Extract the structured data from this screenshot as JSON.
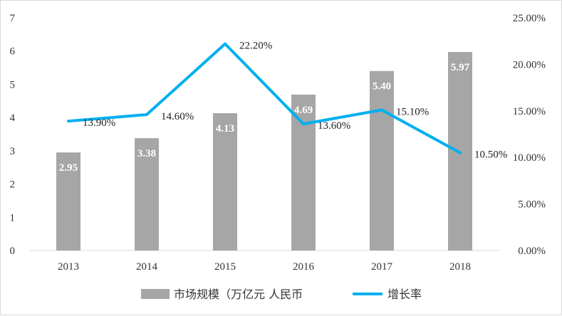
{
  "chart_data": {
    "type": "bar",
    "categories": [
      "2013",
      "2014",
      "2015",
      "2016",
      "2017",
      "2018"
    ],
    "series": [
      {
        "name": "市场规模（万亿元 人民币",
        "type": "bar",
        "axis": "left",
        "values": [
          2.95,
          3.38,
          4.13,
          4.69,
          5.4,
          5.97
        ],
        "labels": [
          "2.95",
          "3.38",
          "4.13",
          "4.69",
          "5.40",
          "5.97"
        ],
        "color": "#a6a6a6"
      },
      {
        "name": "增长率",
        "type": "line",
        "axis": "right",
        "values": [
          13.9,
          14.6,
          22.2,
          13.6,
          15.1,
          10.5
        ],
        "labels": [
          "13.90%",
          "14.60%",
          "22.20%",
          "13.60%",
          "15.10%",
          "10.50%"
        ],
        "color": "#00b0f0"
      }
    ],
    "y_left": {
      "ylim": [
        0,
        7
      ],
      "ticks": [
        "0",
        "1",
        "2",
        "3",
        "4",
        "5",
        "6",
        "7"
      ]
    },
    "y_right": {
      "ylim": [
        0,
        25
      ],
      "ticks": [
        "0.00%",
        "5.00%",
        "10.00%",
        "15.00%",
        "20.00%",
        "25.00%"
      ]
    },
    "grid": false,
    "legend_position": "bottom"
  }
}
